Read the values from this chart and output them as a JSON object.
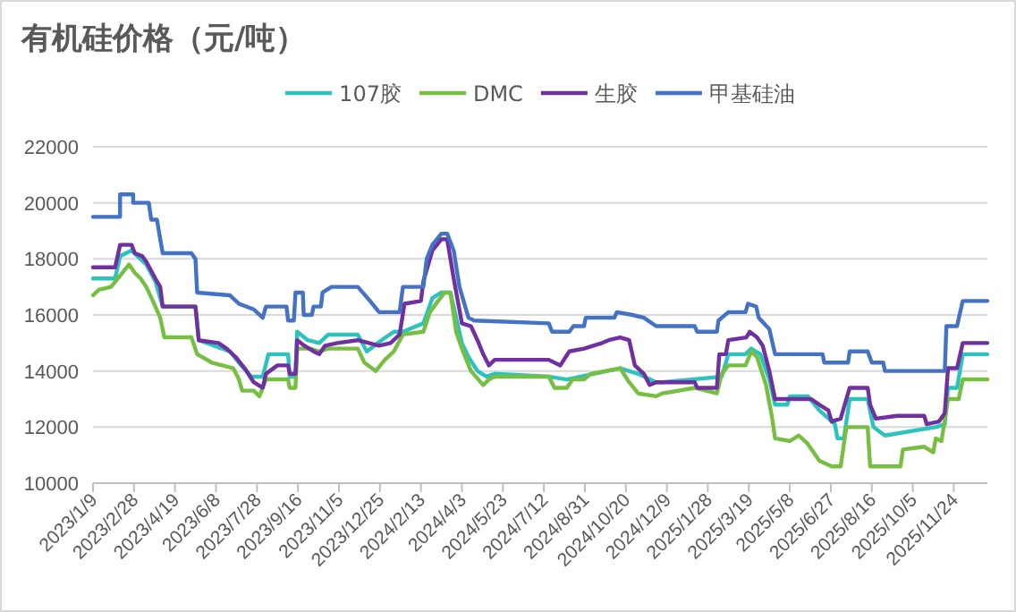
{
  "chart_data": {
    "type": "line",
    "title": "有机硅价格（元/吨）",
    "legend": "top",
    "grid": "y",
    "line_style": "solid",
    "ylim": [
      10000,
      22000
    ],
    "yticks": [
      10000,
      12000,
      14000,
      16000,
      18000,
      20000,
      22000
    ],
    "xlim": [
      "2023-01-09",
      "2026-01-04"
    ],
    "xticks": [
      {
        "value": "2023-01-09",
        "label": "2023/1/9"
      },
      {
        "value": "2023-02-28",
        "label": "2023/2/28"
      },
      {
        "value": "2023-04-19",
        "label": "2023/4/19"
      },
      {
        "value": "2023-06-08",
        "label": "2023/6/8"
      },
      {
        "value": "2023-07-28",
        "label": "2023/7/28"
      },
      {
        "value": "2023-09-16",
        "label": "2023/9/16"
      },
      {
        "value": "2023-11-05",
        "label": "2023/11/5"
      },
      {
        "value": "2023-12-25",
        "label": "2023/12/25"
      },
      {
        "value": "2024-02-13",
        "label": "2024/2/13"
      },
      {
        "value": "2024-04-03",
        "label": "2024/4/3"
      },
      {
        "value": "2024-05-23",
        "label": "2024/5/23"
      },
      {
        "value": "2024-07-12",
        "label": "2024/7/12"
      },
      {
        "value": "2024-08-31",
        "label": "2024/8/31"
      },
      {
        "value": "2024-10-20",
        "label": "2024/10/20"
      },
      {
        "value": "2024-12-09",
        "label": "2024/12/9"
      },
      {
        "value": "2025-01-28",
        "label": "2025/1/28"
      },
      {
        "value": "2025-03-19",
        "label": "2025/3/19"
      },
      {
        "value": "2025-05-08",
        "label": "2025/5/8"
      },
      {
        "value": "2025-06-27",
        "label": "2025/6/27"
      },
      {
        "value": "2025-08-16",
        "label": "2025/8/16"
      },
      {
        "value": "2025-10-05",
        "label": "2025/10/5"
      },
      {
        "value": "2025-11-24",
        "label": "2025/11/24"
      }
    ],
    "series": [
      {
        "name": "107胶",
        "color": "#2cc3bd",
        "x": [
          "2023-01-09",
          "2023-02-05",
          "2023-02-11",
          "2023-02-25",
          "2023-03-04",
          "2023-03-15",
          "2023-03-26",
          "2023-04-04",
          "2023-05-14",
          "2023-05-18",
          "2023-06-25",
          "2023-07-06",
          "2023-07-21",
          "2023-08-04",
          "2023-08-11",
          "2023-09-04",
          "2023-09-06",
          "2023-09-13",
          "2023-09-15",
          "2023-09-28",
          "2023-10-12",
          "2023-10-23",
          "2023-11-28",
          "2023-12-09",
          "2023-12-27",
          "2024-01-11",
          "2024-01-22",
          "2024-02-16",
          "2024-02-27",
          "2024-03-09",
          "2024-03-20",
          "2024-03-27",
          "2024-04-03",
          "2024-04-11",
          "2024-04-22",
          "2024-05-03",
          "2024-05-13",
          "2024-07-18",
          "2024-08-09",
          "2024-10-13",
          "2024-11-04",
          "2024-11-26",
          "2024-12-03",
          "2025-02-14",
          "2025-02-22",
          "2025-03-15",
          "2025-03-22",
          "2025-04-02",
          "2025-04-13",
          "2025-04-20",
          "2025-05-05",
          "2025-05-08",
          "2025-05-30",
          "2025-06-13",
          "2025-07-02",
          "2025-07-05",
          "2025-07-13",
          "2025-07-20",
          "2025-08-11",
          "2025-08-18",
          "2025-09-01",
          "2025-11-02",
          "2025-11-13",
          "2025-11-17",
          "2025-11-28",
          "2025-12-05",
          "2026-01-04"
        ],
        "values": [
          17300,
          17300,
          18100,
          18300,
          18100,
          17800,
          17200,
          16300,
          16300,
          15100,
          14700,
          14300,
          13800,
          13800,
          14600,
          14600,
          13800,
          13800,
          15400,
          15100,
          15000,
          15300,
          15300,
          14700,
          15100,
          15400,
          15400,
          15700,
          16600,
          16800,
          16800,
          15900,
          15000,
          14500,
          14000,
          13800,
          13900,
          13800,
          13700,
          14100,
          13900,
          13600,
          13600,
          13800,
          14600,
          14600,
          14800,
          14600,
          13700,
          12800,
          12800,
          13100,
          13100,
          12600,
          12100,
          11600,
          11600,
          13000,
          13000,
          12000,
          11700,
          12000,
          12100,
          13400,
          13400,
          14600,
          14600
        ]
      },
      {
        "name": "DMC",
        "color": "#77bf42",
        "x": [
          "2023-01-09",
          "2023-01-16",
          "2023-01-31",
          "2023-02-11",
          "2023-02-22",
          "2023-03-01",
          "2023-03-08",
          "2023-03-15",
          "2023-03-23",
          "2023-04-01",
          "2023-04-06",
          "2023-05-09",
          "2023-05-16",
          "2023-06-03",
          "2023-06-29",
          "2023-07-06",
          "2023-07-10",
          "2023-07-24",
          "2023-07-31",
          "2023-08-08",
          "2023-09-04",
          "2023-09-06",
          "2023-09-13",
          "2023-09-15",
          "2023-10-01",
          "2023-10-12",
          "2023-10-23",
          "2023-11-28",
          "2023-12-06",
          "2023-12-20",
          "2023-12-31",
          "2024-01-11",
          "2024-01-22",
          "2024-02-16",
          "2024-02-24",
          "2024-03-05",
          "2024-03-13",
          "2024-03-20",
          "2024-03-27",
          "2024-04-03",
          "2024-04-14",
          "2024-04-29",
          "2024-05-06",
          "2024-05-13",
          "2024-07-18",
          "2024-07-25",
          "2024-08-09",
          "2024-08-16",
          "2024-08-30",
          "2024-09-07",
          "2024-10-13",
          "2024-10-24",
          "2024-11-04",
          "2024-11-26",
          "2024-12-03",
          "2025-01-12",
          "2025-02-08",
          "2025-02-14",
          "2025-02-22",
          "2025-03-15",
          "2025-03-22",
          "2025-03-29",
          "2025-04-09",
          "2025-04-16",
          "2025-04-20",
          "2025-05-08",
          "2025-05-19",
          "2025-05-30",
          "2025-06-13",
          "2025-06-28",
          "2025-07-09",
          "2025-07-16",
          "2025-08-11",
          "2025-08-14",
          "2025-09-20",
          "2025-09-23",
          "2025-10-19",
          "2025-10-30",
          "2025-11-02",
          "2025-11-09",
          "2025-11-17",
          "2025-11-30",
          "2025-12-05",
          "2026-01-04"
        ],
        "values": [
          16700,
          16900,
          17000,
          17400,
          17800,
          17500,
          17300,
          17000,
          16500,
          15900,
          15200,
          15200,
          14600,
          14300,
          14100,
          13700,
          13300,
          13300,
          13100,
          13700,
          13700,
          13400,
          13400,
          14800,
          14800,
          14700,
          14800,
          14800,
          14300,
          14000,
          14400,
          14700,
          15300,
          15400,
          16100,
          16500,
          16800,
          16800,
          15400,
          14800,
          14000,
          13500,
          13700,
          13800,
          13800,
          13400,
          13400,
          13700,
          13700,
          13900,
          14100,
          13600,
          13200,
          13100,
          13200,
          13400,
          13200,
          13900,
          14200,
          14200,
          14700,
          14500,
          13500,
          12400,
          11600,
          11500,
          11700,
          11400,
          10800,
          10600,
          10600,
          12000,
          12000,
          10600,
          10600,
          11200,
          11300,
          11100,
          11600,
          11500,
          13000,
          13000,
          13700,
          13700
        ]
      },
      {
        "name": "生胶",
        "color": "#7030a0",
        "x": [
          "2023-01-09",
          "2023-02-05",
          "2023-02-11",
          "2023-02-25",
          "2023-03-01",
          "2023-03-10",
          "2023-03-15",
          "2023-03-26",
          "2023-04-01",
          "2023-04-04",
          "2023-05-14",
          "2023-05-18",
          "2023-06-11",
          "2023-06-21",
          "2023-07-02",
          "2023-07-13",
          "2023-07-24",
          "2023-08-04",
          "2023-08-08",
          "2023-08-22",
          "2023-09-04",
          "2023-09-06",
          "2023-09-13",
          "2023-09-15",
          "2023-09-24",
          "2023-10-05",
          "2023-10-12",
          "2023-10-19",
          "2023-11-03",
          "2023-11-28",
          "2023-12-24",
          "2024-01-07",
          "2024-01-18",
          "2024-01-24",
          "2024-02-13",
          "2024-02-16",
          "2024-02-27",
          "2024-03-09",
          "2024-03-16",
          "2024-03-24",
          "2024-04-03",
          "2024-04-14",
          "2024-04-22",
          "2024-04-29",
          "2024-05-06",
          "2024-05-13",
          "2024-07-18",
          "2024-08-01",
          "2024-08-12",
          "2024-08-30",
          "2024-09-21",
          "2024-09-29",
          "2024-10-13",
          "2024-10-24",
          "2024-10-31",
          "2024-11-11",
          "2024-11-18",
          "2024-11-26",
          "2024-12-03",
          "2025-01-12",
          "2025-01-15",
          "2025-02-08",
          "2025-02-11",
          "2025-02-19",
          "2025-02-22",
          "2025-03-16",
          "2025-03-20",
          "2025-03-29",
          "2025-04-05",
          "2025-04-13",
          "2025-04-20",
          "2025-06-03",
          "2025-06-13",
          "2025-06-24",
          "2025-06-28",
          "2025-07-09",
          "2025-07-20",
          "2025-08-11",
          "2025-08-14",
          "2025-08-21",
          "2025-09-16",
          "2025-10-19",
          "2025-10-22",
          "2025-11-06",
          "2025-11-13",
          "2025-11-17",
          "2025-11-28",
          "2025-12-05",
          "2026-01-04"
        ],
        "values": [
          17700,
          17700,
          18500,
          18500,
          18200,
          18100,
          17900,
          17300,
          17000,
          16300,
          16300,
          15100,
          15000,
          14800,
          14500,
          14100,
          13600,
          13400,
          13900,
          14200,
          14200,
          13900,
          13900,
          15100,
          14900,
          14700,
          14600,
          14900,
          15000,
          15100,
          14900,
          15000,
          15300,
          16400,
          16500,
          17200,
          18300,
          18700,
          18700,
          17300,
          15700,
          15600,
          15100,
          14600,
          14200,
          14400,
          14400,
          14200,
          14700,
          14800,
          15000,
          15100,
          15200,
          15100,
          14200,
          13900,
          13500,
          13600,
          13600,
          13600,
          13400,
          13400,
          14600,
          14600,
          15100,
          15200,
          15400,
          15200,
          14900,
          14000,
          13000,
          13000,
          12800,
          12600,
          12200,
          12300,
          13400,
          13400,
          12800,
          12300,
          12400,
          12400,
          12100,
          12200,
          12500,
          14100,
          14100,
          15000,
          15000
        ]
      },
      {
        "name": "甲基硅油",
        "color": "#4472c4",
        "x": [
          "2023-01-09",
          "2023-02-11",
          "2023-02-11",
          "2023-02-27",
          "2023-02-27",
          "2023-03-18",
          "2023-03-21",
          "2023-03-28",
          "2023-04-01",
          "2023-04-04",
          "2023-05-09",
          "2023-05-14",
          "2023-05-16",
          "2023-06-25",
          "2023-07-06",
          "2023-07-24",
          "2023-08-04",
          "2023-08-08",
          "2023-09-02",
          "2023-09-04",
          "2023-09-11",
          "2023-09-13",
          "2023-09-22",
          "2023-09-23",
          "2023-10-03",
          "2023-10-05",
          "2023-10-14",
          "2023-10-16",
          "2023-10-27",
          "2023-11-28",
          "2023-12-13",
          "2023-12-24",
          "2024-01-18",
          "2024-01-22",
          "2024-02-16",
          "2024-02-20",
          "2024-02-27",
          "2024-03-09",
          "2024-03-16",
          "2024-03-24",
          "2024-03-31",
          "2024-04-11",
          "2024-04-18",
          "2024-07-18",
          "2024-07-22",
          "2024-08-12",
          "2024-08-17",
          "2024-08-30",
          "2024-09-01",
          "2024-10-06",
          "2024-10-09",
          "2024-10-28",
          "2024-11-11",
          "2024-11-26",
          "2024-12-03",
          "2025-01-12",
          "2025-01-15",
          "2025-02-08",
          "2025-02-10",
          "2025-02-22",
          "2025-03-15",
          "2025-03-18",
          "2025-03-28",
          "2025-03-31",
          "2025-04-13",
          "2025-04-20",
          "2025-06-17",
          "2025-06-19",
          "2025-07-18",
          "2025-07-20",
          "2025-08-11",
          "2025-08-16",
          "2025-08-30",
          "2025-09-01",
          "2025-11-13",
          "2025-11-15",
          "2025-11-28",
          "2025-12-01",
          "2025-12-05",
          "2026-01-04"
        ],
        "values": [
          19500,
          19500,
          20300,
          20300,
          20000,
          20000,
          19400,
          19400,
          18700,
          18200,
          18200,
          18000,
          16800,
          16700,
          16400,
          16200,
          15900,
          16300,
          16300,
          15800,
          15800,
          16800,
          16800,
          16000,
          16000,
          16300,
          16300,
          16800,
          17000,
          17000,
          16500,
          16100,
          16100,
          17000,
          17000,
          18000,
          18500,
          18900,
          18900,
          18300,
          17000,
          15900,
          15800,
          15700,
          15400,
          15400,
          15600,
          15600,
          15900,
          15900,
          16100,
          16000,
          15900,
          15600,
          15600,
          15600,
          15400,
          15400,
          15800,
          16100,
          16100,
          16400,
          16300,
          15900,
          15500,
          14600,
          14600,
          14300,
          14300,
          14700,
          14700,
          14300,
          14300,
          14000,
          14000,
          15600,
          15600,
          16000,
          16500,
          16500
        ]
      }
    ]
  }
}
